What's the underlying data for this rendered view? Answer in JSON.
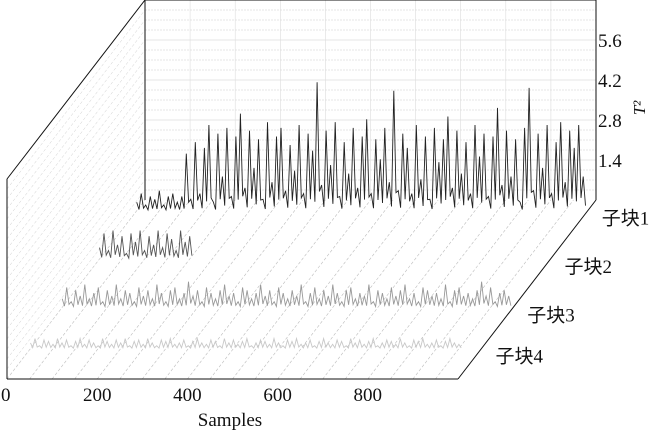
{
  "chart_data": {
    "type": "line",
    "subtype": "3d-waterfall",
    "xlabel": "Samples",
    "zlabel": "T²",
    "xlim": [
      0,
      1000
    ],
    "xticks": [
      "0",
      "200",
      "400",
      "600",
      "800"
    ],
    "zticks": [
      "1.4",
      "2.8",
      "4.2",
      "5.6"
    ],
    "zlim": [
      0,
      7
    ],
    "grid": true,
    "line_colors": [
      "#222222",
      "#555555",
      "#999999",
      "#c8c8c8"
    ],
    "series": [
      {
        "name": "子块1",
        "x_start": 0,
        "x_step": 10,
        "values": [
          0.3,
          0.6,
          0.2,
          0.5,
          0.4,
          0.7,
          0.2,
          0.5,
          0.6,
          0.3,
          0.5,
          2.0,
          0.4,
          2.4,
          0.6,
          2.2,
          3.0,
          0.3,
          2.7,
          1.2,
          2.9,
          0.5,
          2.6,
          3.4,
          0.8,
          2.8,
          1.5,
          2.5,
          0.4,
          3.1,
          1.0,
          2.6,
          2.9,
          0.7,
          2.3,
          1.4,
          3.0,
          0.6,
          2.7,
          2.1,
          4.5,
          0.9,
          2.8,
          1.6,
          3.1,
          0.5,
          2.4,
          1.3,
          2.9,
          0.8,
          2.6,
          3.2,
          0.6,
          2.5,
          1.8,
          2.9,
          1.0,
          4.2,
          0.7,
          2.7,
          2.2,
          0.6,
          3.0,
          1.1,
          2.6,
          0.4,
          2.9,
          1.7,
          2.5,
          3.3,
          0.8,
          2.8,
          1.3,
          2.4,
          0.6,
          3.0,
          1.9,
          2.7,
          0.5,
          2.6,
          3.6,
          0.9,
          2.8,
          1.2,
          2.5,
          0.3,
          2.9,
          4.3,
          0.7,
          2.7,
          1.5,
          3.0,
          0.6,
          2.4,
          3.1,
          1.0,
          2.8,
          2.2,
          3.0,
          1.2
        ]
      },
      {
        "name": "子块2",
        "x_start": 0,
        "x_step": 10,
        "values": [
          0.4,
          0.9,
          0.3,
          1.0,
          0.5,
          0.8,
          0.2,
          0.9,
          0.6,
          1.0,
          0.3,
          0.8,
          0.5,
          1.0,
          0.4,
          0.9,
          0.7,
          0.3,
          1.0,
          0.6,
          0.8
        ]
      },
      {
        "name": "子块3",
        "x_start": 0,
        "x_step": 10,
        "values": [
          0.3,
          0.7,
          0.2,
          0.6,
          0.4,
          0.8,
          0.3,
          0.5,
          0.7,
          0.2,
          0.6,
          0.4,
          0.8,
          0.3,
          0.6,
          0.5,
          0.2,
          0.7,
          0.4,
          0.6,
          0.3,
          0.8,
          0.5,
          0.2,
          0.6,
          0.7,
          0.3,
          0.5,
          0.9,
          0.4,
          0.6,
          0.2,
          0.7,
          0.5,
          0.3,
          0.6,
          0.8,
          0.4,
          0.5,
          0.2,
          0.7,
          0.6,
          0.3,
          0.5,
          0.8,
          0.4,
          0.6,
          0.2,
          0.7,
          0.5,
          0.3,
          0.6,
          0.4,
          0.8,
          0.2,
          0.5,
          0.7,
          0.3,
          0.6,
          0.4,
          0.8,
          0.5,
          0.2,
          0.6,
          0.7,
          0.3,
          0.5,
          0.4,
          0.8,
          0.2,
          0.6,
          0.5,
          0.3,
          0.7,
          0.4,
          0.6,
          0.8,
          0.3,
          0.5,
          0.2,
          0.7,
          0.6,
          0.4,
          0.5,
          0.3,
          0.8,
          0.2,
          0.6,
          0.7,
          0.4,
          0.5,
          0.3,
          0.6,
          0.9,
          0.4,
          0.7,
          0.2,
          0.5,
          0.6,
          0.4
        ]
      },
      {
        "name": "子块4",
        "x_start": 0,
        "x_step": 10,
        "values": [
          0.2,
          0.35,
          0.1,
          0.3,
          0.25,
          0.15,
          0.35,
          0.2,
          0.3,
          0.1,
          0.25,
          0.35,
          0.15,
          0.3,
          0.2,
          0.1,
          0.35,
          0.25,
          0.15,
          0.3,
          0.2,
          0.35,
          0.1,
          0.25,
          0.3,
          0.15,
          0.35,
          0.2,
          0.1,
          0.3,
          0.25,
          0.35,
          0.15,
          0.2,
          0.3,
          0.1,
          0.25,
          0.35,
          0.2,
          0.15,
          0.3,
          0.25,
          0.1,
          0.35,
          0.2,
          0.3,
          0.15,
          0.25,
          0.35,
          0.1,
          0.2,
          0.3,
          0.25,
          0.15,
          0.35,
          0.2,
          0.1,
          0.3,
          0.25,
          0.35,
          0.15,
          0.2,
          0.3,
          0.1,
          0.25,
          0.35,
          0.2,
          0.15,
          0.3,
          0.25,
          0.1,
          0.35,
          0.2,
          0.3,
          0.15,
          0.25,
          0.35,
          0.1,
          0.2,
          0.3,
          0.25,
          0.15,
          0.35,
          0.2,
          0.1,
          0.3,
          0.25,
          0.35,
          0.15,
          0.2,
          0.3,
          0.1,
          0.25,
          0.35,
          0.2,
          0.15
        ]
      }
    ]
  }
}
